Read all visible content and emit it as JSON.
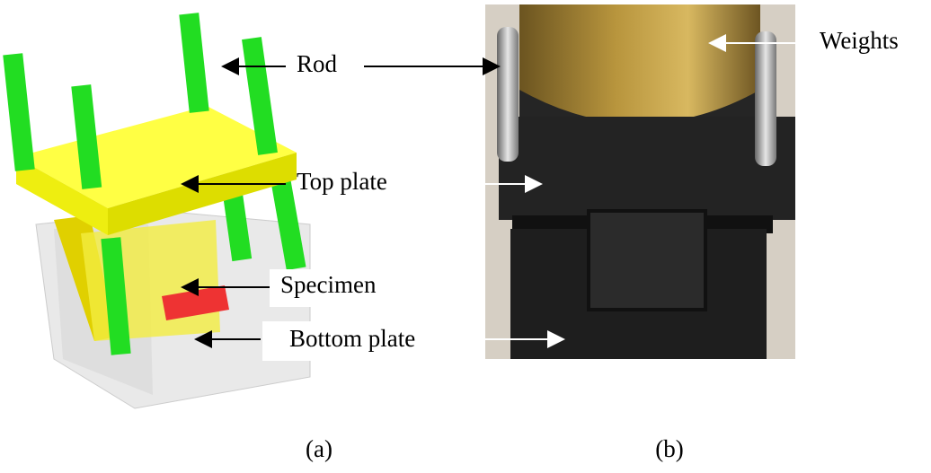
{
  "labels": {
    "rod": "Rod",
    "weights": "Weights",
    "top_plate": "Top plate",
    "specimen": "Specimen",
    "bottom_plate": "Bottom plate"
  },
  "captions": {
    "a": "(a)",
    "b": "(b)"
  }
}
